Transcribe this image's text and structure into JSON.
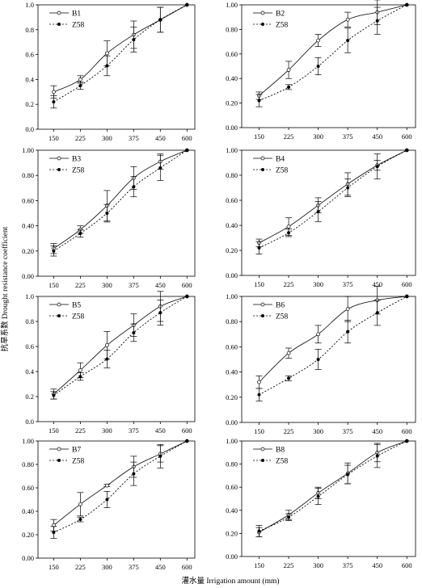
{
  "figure": {
    "ylabel": "抗旱系数 Drought resistance coefficient",
    "xlabel": "灌水量 Irrigation amount (mm)"
  },
  "chart_data": [
    {
      "type": "line",
      "categories": [
        "150",
        "225",
        "300",
        "375",
        "450",
        "600"
      ],
      "ylim": [
        0,
        1.0
      ],
      "yticks": [
        "0.0",
        "0.2",
        "0.4",
        "0.6",
        "0.8",
        "1.0"
      ],
      "legend_placement": "top-left",
      "series": [
        {
          "name": "B1",
          "values": [
            0.3,
            0.4,
            0.61,
            0.76,
            0.88,
            1.0
          ],
          "errors": [
            0.05,
            0.03,
            0.1,
            0.11,
            0.1,
            0
          ]
        },
        {
          "name": "Z58",
          "values": [
            0.22,
            0.35,
            0.51,
            0.72,
            0.88,
            1.0
          ],
          "errors": [
            0.05,
            0.03,
            0.08,
            0.1,
            0.1,
            0
          ]
        }
      ]
    },
    {
      "type": "line",
      "categories": [
        "150",
        "225",
        "300",
        "375",
        "450",
        "600"
      ],
      "ylim": [
        0,
        1.0
      ],
      "yticks": [
        "0.00",
        "0.20",
        "0.40",
        "0.60",
        "0.80",
        "1.00"
      ],
      "legend_placement": "top-left",
      "series": [
        {
          "name": "B2",
          "values": [
            0.26,
            0.47,
            0.71,
            0.88,
            0.94,
            1.0
          ],
          "errors": [
            0.03,
            0.07,
            0.05,
            0.06,
            0.1,
            0
          ]
        },
        {
          "name": "Z58",
          "values": [
            0.22,
            0.33,
            0.5,
            0.71,
            0.87,
            1.0
          ],
          "errors": [
            0.05,
            0.02,
            0.07,
            0.1,
            0.11,
            0
          ]
        }
      ]
    },
    {
      "type": "line",
      "categories": [
        "150",
        "225",
        "300",
        "375",
        "450",
        "600"
      ],
      "ylim": [
        0,
        1.0
      ],
      "yticks": [
        "0.00",
        "0.20",
        "0.40",
        "0.60",
        "0.80",
        "1.00"
      ],
      "legend_placement": "top-left",
      "series": [
        {
          "name": "B3",
          "values": [
            0.22,
            0.37,
            0.56,
            0.78,
            0.91,
            1.0
          ],
          "errors": [
            0.04,
            0.03,
            0.12,
            0.09,
            0.06,
            0
          ]
        },
        {
          "name": "Z58",
          "values": [
            0.2,
            0.34,
            0.5,
            0.71,
            0.86,
            1.0
          ],
          "errors": [
            0.04,
            0.03,
            0.07,
            0.08,
            0.1,
            0
          ]
        }
      ]
    },
    {
      "type": "line",
      "categories": [
        "150",
        "225",
        "300",
        "375",
        "450",
        "600"
      ],
      "ylim": [
        0,
        1.0
      ],
      "yticks": [
        "0.00",
        "0.20",
        "0.40",
        "0.60",
        "0.80",
        "1.00"
      ],
      "legend_placement": "top-left",
      "series": [
        {
          "name": "B4",
          "values": [
            0.26,
            0.39,
            0.56,
            0.73,
            0.88,
            1.0
          ],
          "errors": [
            0.03,
            0.07,
            0.06,
            0.09,
            0.04,
            0
          ]
        },
        {
          "name": "Z58",
          "values": [
            0.22,
            0.34,
            0.51,
            0.7,
            0.87,
            1.0
          ],
          "errors": [
            0.05,
            0.03,
            0.08,
            0.07,
            0.1,
            0
          ]
        }
      ]
    },
    {
      "type": "line",
      "categories": [
        "150",
        "225",
        "300",
        "375",
        "450",
        "600"
      ],
      "ylim": [
        0,
        1.0
      ],
      "yticks": [
        "0.0",
        "0.2",
        "0.4",
        "0.6",
        "0.8",
        "1.0"
      ],
      "legend_placement": "top-left",
      "series": [
        {
          "name": "B5",
          "values": [
            0.22,
            0.41,
            0.61,
            0.77,
            0.92,
            1.0
          ],
          "errors": [
            0.04,
            0.06,
            0.11,
            0.09,
            0.12,
            0
          ]
        },
        {
          "name": "Z58",
          "values": [
            0.21,
            0.36,
            0.5,
            0.71,
            0.87,
            1.0
          ],
          "errors": [
            0.03,
            0.03,
            0.07,
            0.07,
            0.1,
            0
          ]
        }
      ]
    },
    {
      "type": "line",
      "categories": [
        "150",
        "225",
        "300",
        "375",
        "450",
        "600"
      ],
      "ylim": [
        0,
        1.0
      ],
      "yticks": [
        "0.00",
        "0.20",
        "0.40",
        "0.60",
        "0.80",
        "1.00"
      ],
      "legend_placement": "top-left",
      "series": [
        {
          "name": "B6",
          "values": [
            0.32,
            0.55,
            0.7,
            0.9,
            0.97,
            1.0
          ],
          "errors": [
            0.05,
            0.04,
            0.07,
            0.1,
            0.11,
            0
          ]
        },
        {
          "name": "Z58",
          "values": [
            0.22,
            0.35,
            0.5,
            0.72,
            0.87,
            1.0
          ],
          "errors": [
            0.05,
            0.02,
            0.08,
            0.09,
            0.1,
            0
          ]
        }
      ]
    },
    {
      "type": "line",
      "categories": [
        "150",
        "225",
        "300",
        "375",
        "450",
        "600"
      ],
      "ylim": [
        0,
        1.0
      ],
      "yticks": [
        "0.00",
        "0.20",
        "0.40",
        "0.60",
        "0.80",
        "1.00"
      ],
      "legend_placement": "top-left",
      "series": [
        {
          "name": "B7",
          "values": [
            0.28,
            0.46,
            0.62,
            0.78,
            0.89,
            1.0
          ],
          "errors": [
            0.05,
            0.1,
            0.01,
            0.09,
            0.07,
            0
          ]
        },
        {
          "name": "Z58",
          "values": [
            0.22,
            0.33,
            0.5,
            0.72,
            0.87,
            1.0
          ],
          "errors": [
            0.05,
            0.02,
            0.07,
            0.1,
            0.1,
            0
          ]
        }
      ]
    },
    {
      "type": "line",
      "categories": [
        "150",
        "225",
        "300",
        "375",
        "450",
        "600"
      ],
      "ylim": [
        0,
        1.0
      ],
      "yticks": [
        "0.00",
        "0.20",
        "0.40",
        "0.60",
        "0.80",
        "1.00"
      ],
      "legend_placement": "top-left",
      "series": [
        {
          "name": "B8",
          "values": [
            0.21,
            0.36,
            0.55,
            0.72,
            0.9,
            1.0
          ],
          "errors": [
            0.04,
            0.04,
            0.05,
            0.09,
            0.08,
            0
          ]
        },
        {
          "name": "Z58",
          "values": [
            0.22,
            0.34,
            0.52,
            0.71,
            0.87,
            1.0
          ],
          "errors": [
            0.05,
            0.03,
            0.07,
            0.08,
            0.1,
            0
          ]
        }
      ]
    }
  ]
}
